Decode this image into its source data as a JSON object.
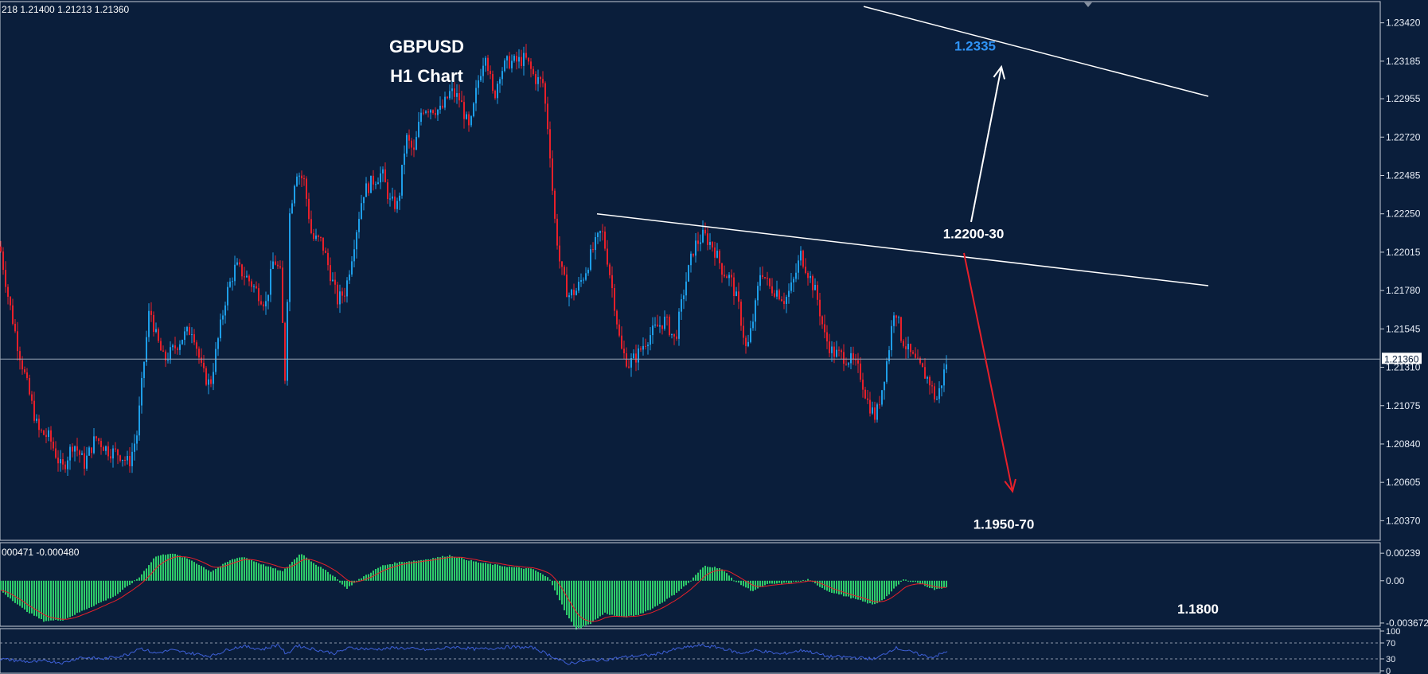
{
  "chart_data": [
    {
      "type": "candlestick",
      "title": "GBPUSD",
      "subtitle": "H1 Chart",
      "ohlc_readout": "218 1.21400 1.21213 1.21360",
      "ylim": [
        1.2025,
        1.2355
      ],
      "y_ticks": [
        1.2342,
        1.23185,
        1.22955,
        1.2272,
        1.22485,
        1.2225,
        1.22015,
        1.2178,
        1.21545,
        1.2131,
        1.21075,
        1.2084,
        1.20605,
        1.2037
      ],
      "y_tick_labels": [
        "1.23420",
        "1.23185",
        "1.22955",
        "1.22720",
        "1.22485",
        "1.22250",
        "1.22015",
        "1.21780",
        "1.21545",
        "1.21310",
        "1.21075",
        "1.20840",
        "1.20605",
        "1.20370"
      ],
      "current_price": 1.2136,
      "current_price_label": "1.21360",
      "bull_color": "#1e9ee8",
      "bear_color": "#e8202a",
      "close_path": [
        [
          0,
          1.2205
        ],
        [
          10,
          1.2175
        ],
        [
          22,
          1.2145
        ],
        [
          35,
          1.2118
        ],
        [
          48,
          1.2092
        ],
        [
          62,
          1.2088
        ],
        [
          78,
          1.2068
        ],
        [
          92,
          1.2085
        ],
        [
          106,
          1.2072
        ],
        [
          120,
          1.2088
        ],
        [
          136,
          1.208
        ],
        [
          150,
          1.2078
        ],
        [
          162,
          1.2072
        ],
        [
          172,
          1.209
        ],
        [
          180,
          1.213
        ],
        [
          188,
          1.2168
        ],
        [
          196,
          1.215
        ],
        [
          206,
          1.2135
        ],
        [
          218,
          1.2142
        ],
        [
          230,
          1.215
        ],
        [
          242,
          1.2155
        ],
        [
          254,
          1.2128
        ],
        [
          264,
          1.212
        ],
        [
          274,
          1.2148
        ],
        [
          284,
          1.2175
        ],
        [
          296,
          1.2193
        ],
        [
          310,
          1.2186
        ],
        [
          322,
          1.2178
        ],
        [
          334,
          1.217
        ],
        [
          344,
          1.2198
        ],
        [
          352,
          1.2188
        ],
        [
          358,
          1.2125
        ],
        [
          364,
          1.2225
        ],
        [
          372,
          1.2252
        ],
        [
          382,
          1.2245
        ],
        [
          392,
          1.221
        ],
        [
          404,
          1.2208
        ],
        [
          414,
          1.219
        ],
        [
          424,
          1.2172
        ],
        [
          434,
          1.2178
        ],
        [
          444,
          1.2205
        ],
        [
          456,
          1.2238
        ],
        [
          468,
          1.2245
        ],
        [
          480,
          1.225
        ],
        [
          490,
          1.2232
        ],
        [
          500,
          1.223
        ],
        [
          510,
          1.2272
        ],
        [
          520,
          1.2262
        ],
        [
          530,
          1.229
        ],
        [
          542,
          1.229
        ],
        [
          554,
          1.2288
        ],
        [
          566,
          1.23
        ],
        [
          578,
          1.2295
        ],
        [
          590,
          1.2275
        ],
        [
          600,
          1.2305
        ],
        [
          610,
          1.2325
        ],
        [
          620,
          1.2295
        ],
        [
          628,
          1.2312
        ],
        [
          638,
          1.2318
        ],
        [
          648,
          1.2318
        ],
        [
          660,
          1.232
        ],
        [
          672,
          1.2308
        ],
        [
          682,
          1.2305
        ],
        [
          690,
          1.227
        ],
        [
          696,
          1.2225
        ],
        [
          704,
          1.2192
        ],
        [
          714,
          1.2175
        ],
        [
          724,
          1.2178
        ],
        [
          734,
          1.2188
        ],
        [
          744,
          1.2202
        ],
        [
          756,
          1.2215
        ],
        [
          764,
          1.2195
        ],
        [
          772,
          1.217
        ],
        [
          780,
          1.2142
        ],
        [
          790,
          1.2133
        ],
        [
          800,
          1.2138
        ],
        [
          812,
          1.2148
        ],
        [
          824,
          1.2155
        ],
        [
          836,
          1.216
        ],
        [
          848,
          1.2147
        ],
        [
          860,
          1.218
        ],
        [
          872,
          1.2205
        ],
        [
          884,
          1.2212
        ],
        [
          896,
          1.2205
        ],
        [
          908,
          1.219
        ],
        [
          918,
          1.2185
        ],
        [
          928,
          1.2168
        ],
        [
          938,
          1.214
        ],
        [
          948,
          1.2165
        ],
        [
          956,
          1.2192
        ],
        [
          966,
          1.218
        ],
        [
          976,
          1.2178
        ],
        [
          986,
          1.2172
        ],
        [
          996,
          1.2182
        ],
        [
          1006,
          1.22
        ],
        [
          1016,
          1.2188
        ],
        [
          1026,
          1.2175
        ],
        [
          1036,
          1.215
        ],
        [
          1046,
          1.214
        ],
        [
          1058,
          1.2138
        ],
        [
          1070,
          1.2135
        ],
        [
          1080,
          1.2128
        ],
        [
          1090,
          1.211
        ],
        [
          1100,
          1.21
        ],
        [
          1108,
          1.2118
        ],
        [
          1116,
          1.214
        ],
        [
          1124,
          1.217
        ],
        [
          1132,
          1.215
        ],
        [
          1142,
          1.214
        ],
        [
          1152,
          1.2133
        ],
        [
          1160,
          1.2128
        ],
        [
          1168,
          1.2122
        ],
        [
          1176,
          1.211
        ],
        [
          1182,
          1.212
        ],
        [
          1190,
          1.2136
        ]
      ],
      "trendlines": [
        {
          "from": [
            1085,
            1.2352
          ],
          "to": [
            1518,
            1.2297
          ]
        },
        {
          "from": [
            750,
            1.2225
          ],
          "to": [
            1518,
            1.2181
          ]
        }
      ],
      "arrows": [
        {
          "color": "#ffffff",
          "from": [
            1220,
            1.222
          ],
          "to": [
            1258,
            1.2315
          ]
        },
        {
          "color": "#e8202a",
          "from": [
            1211,
            1.2201
          ],
          "to": [
            1272,
            1.2055
          ]
        }
      ],
      "annotations": [
        {
          "text": "1.2335",
          "color": "#2f93f5",
          "x": 1225,
          "y": 1.2328
        },
        {
          "text": "1.2200-30",
          "color": "#ffffff",
          "x": 1223,
          "y": 1.2213
        },
        {
          "text": "1.1950-70",
          "color": "#ffffff",
          "x": 1261,
          "y": 1.2035
        }
      ]
    },
    {
      "type": "macd",
      "readout": "000471 -0.000480",
      "ylim": [
        -0.00395,
        0.0033
      ],
      "y_ticks": [
        0.00239,
        0.0,
        -0.00367
      ],
      "y_tick_labels": [
        "0.00239",
        "0.00",
        "-0.003672"
      ],
      "hist_color": "#2ecc6a",
      "signal_color": "#e8202a",
      "annotation": "1.1800",
      "curve": [
        [
          0,
          -0.0008
        ],
        [
          30,
          -0.0025
        ],
        [
          55,
          -0.0035
        ],
        [
          80,
          -0.0034
        ],
        [
          110,
          -0.0024
        ],
        [
          145,
          -0.0013
        ],
        [
          175,
          0.0003
        ],
        [
          195,
          0.0021
        ],
        [
          215,
          0.0024
        ],
        [
          240,
          0.0018
        ],
        [
          265,
          0.0008
        ],
        [
          290,
          0.0018
        ],
        [
          305,
          0.0021
        ],
        [
          330,
          0.0014
        ],
        [
          355,
          0.0008
        ],
        [
          378,
          0.0024
        ],
        [
          395,
          0.0015
        ],
        [
          420,
          0.0004
        ],
        [
          435,
          -0.0007
        ],
        [
          455,
          0.0003
        ],
        [
          480,
          0.0013
        ],
        [
          500,
          0.0016
        ],
        [
          530,
          0.0018
        ],
        [
          565,
          0.0022
        ],
        [
          600,
          0.0016
        ],
        [
          640,
          0.0012
        ],
        [
          670,
          0.001
        ],
        [
          690,
          0.0002
        ],
        [
          700,
          -0.0012
        ],
        [
          712,
          -0.003
        ],
        [
          724,
          -0.0042
        ],
        [
          740,
          -0.0038
        ],
        [
          760,
          -0.0028
        ],
        [
          780,
          -0.0032
        ],
        [
          800,
          -0.003
        ],
        [
          820,
          -0.0024
        ],
        [
          845,
          -0.0013
        ],
        [
          865,
          -0.0002
        ],
        [
          885,
          0.0013
        ],
        [
          905,
          0.0011
        ],
        [
          925,
          -0.0001
        ],
        [
          945,
          -0.0009
        ],
        [
          965,
          -0.0003
        ],
        [
          990,
          -0.0002
        ],
        [
          1015,
          0.0001
        ],
        [
          1040,
          -0.0009
        ],
        [
          1070,
          -0.0015
        ],
        [
          1098,
          -0.0021
        ],
        [
          1112,
          -0.0015
        ],
        [
          1135,
          0.0001
        ],
        [
          1155,
          -0.0002
        ],
        [
          1175,
          -0.0008
        ],
        [
          1190,
          -0.0005
        ]
      ]
    },
    {
      "type": "oscillator",
      "ylim": [
        0,
        100
      ],
      "levels": [
        70,
        30
      ],
      "y_ticks": [
        100,
        70,
        30,
        0
      ],
      "y_tick_labels": [
        "100",
        "70",
        "30",
        "0"
      ],
      "line_color": "#3d5fd6",
      "curve": [
        [
          0,
          30
        ],
        [
          40,
          22
        ],
        [
          60,
          25
        ],
        [
          80,
          20
        ],
        [
          100,
          34
        ],
        [
          130,
          30
        ],
        [
          160,
          41
        ],
        [
          175,
          58
        ],
        [
          195,
          44
        ],
        [
          215,
          52
        ],
        [
          240,
          44
        ],
        [
          265,
          37
        ],
        [
          290,
          56
        ],
        [
          305,
          62
        ],
        [
          330,
          54
        ],
        [
          350,
          66
        ],
        [
          360,
          40
        ],
        [
          372,
          64
        ],
        [
          395,
          54
        ],
        [
          420,
          44
        ],
        [
          440,
          58
        ],
        [
          470,
          54
        ],
        [
          500,
          58
        ],
        [
          540,
          52
        ],
        [
          570,
          60
        ],
        [
          600,
          54
        ],
        [
          640,
          60
        ],
        [
          670,
          58
        ],
        [
          690,
          40
        ],
        [
          712,
          18
        ],
        [
          730,
          24
        ],
        [
          760,
          28
        ],
        [
          790,
          36
        ],
        [
          820,
          40
        ],
        [
          850,
          55
        ],
        [
          880,
          64
        ],
        [
          905,
          58
        ],
        [
          930,
          44
        ],
        [
          950,
          52
        ],
        [
          980,
          42
        ],
        [
          1010,
          52
        ],
        [
          1040,
          36
        ],
        [
          1070,
          34
        ],
        [
          1100,
          30
        ],
        [
          1125,
          58
        ],
        [
          1150,
          44
        ],
        [
          1170,
          34
        ],
        [
          1182,
          42
        ],
        [
          1190,
          48
        ]
      ]
    }
  ]
}
